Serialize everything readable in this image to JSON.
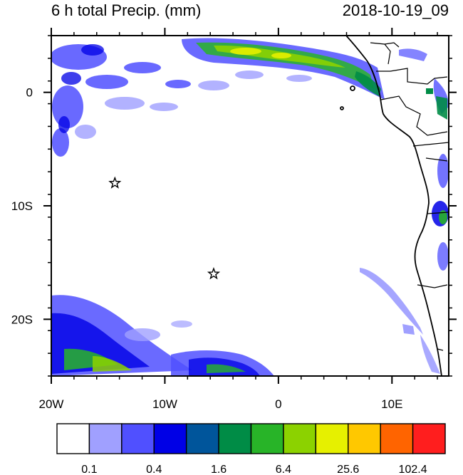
{
  "header": {
    "title": "6 h total Precip. (mm)",
    "datetime": "2018-10-19_09"
  },
  "map": {
    "lon_range": [
      -20,
      15
    ],
    "lat_range": [
      -25,
      5
    ],
    "x_ticks": [
      {
        "value": -20,
        "label": "20W"
      },
      {
        "value": -10,
        "label": "10W"
      },
      {
        "value": 0,
        "label": "0"
      },
      {
        "value": 10,
        "label": "10E"
      }
    ],
    "y_ticks": [
      {
        "value": 0,
        "label": "0"
      },
      {
        "value": -10,
        "label": "10S"
      },
      {
        "value": -20,
        "label": "20S"
      }
    ],
    "markers": [
      {
        "symbol": "star",
        "lon": -14.4,
        "lat": -8.0
      },
      {
        "symbol": "star",
        "lon": -5.7,
        "lat": -16.0
      }
    ]
  },
  "colorbar": {
    "colors": [
      "#ffffff",
      "#a0a0ff",
      "#5050ff",
      "#0000e6",
      "#00559b",
      "#008c46",
      "#28b428",
      "#8cd200",
      "#e6f000",
      "#ffc800",
      "#ff6400",
      "#ff1e1e"
    ],
    "labels": [
      {
        "after_box": 1,
        "text": "0.1"
      },
      {
        "after_box": 3,
        "text": "0.4"
      },
      {
        "after_box": 5,
        "text": "1.6"
      },
      {
        "after_box": 7,
        "text": "6.4"
      },
      {
        "after_box": 9,
        "text": "25.6"
      },
      {
        "after_box": 11,
        "text": "102.4"
      }
    ]
  }
}
